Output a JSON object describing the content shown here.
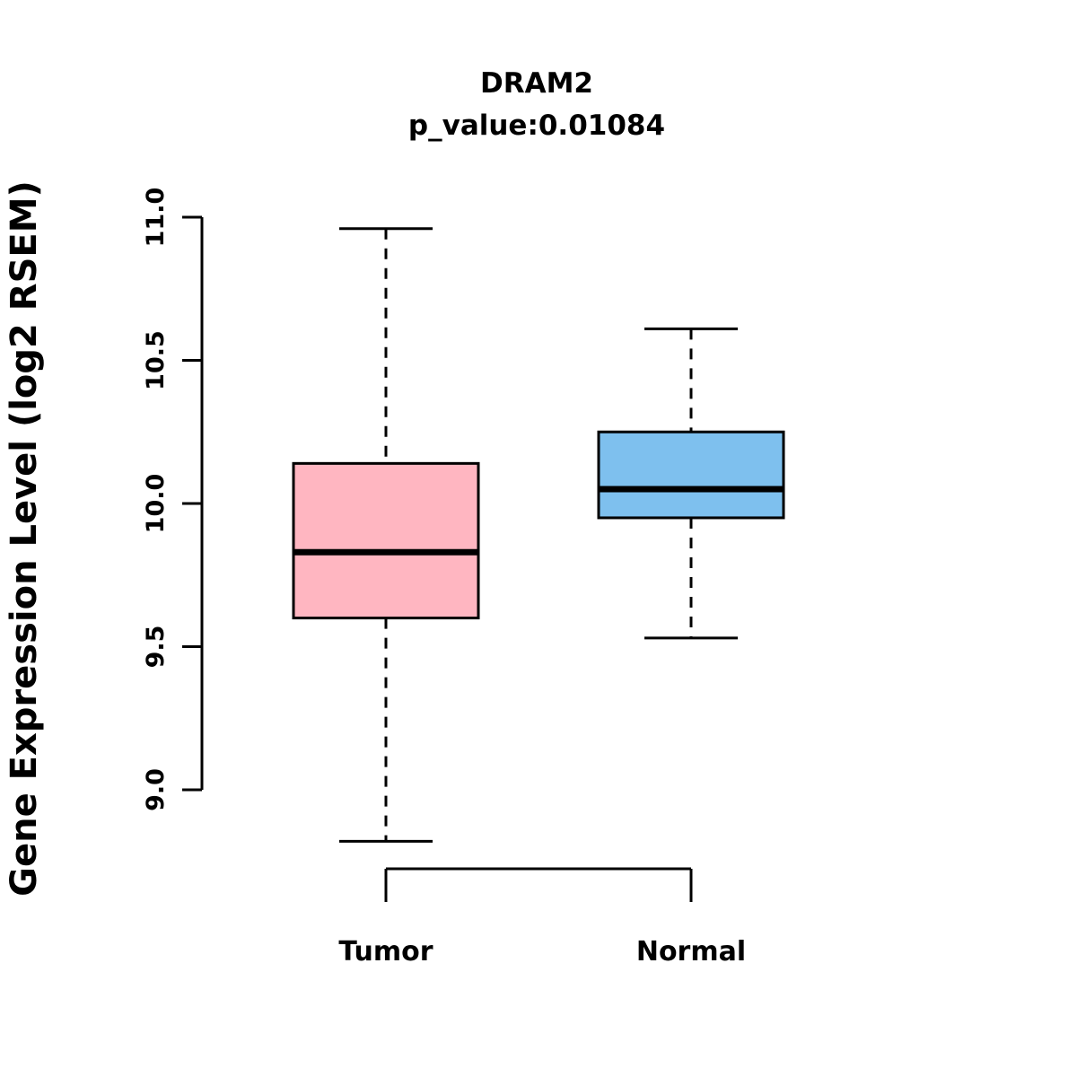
{
  "chart_data": {
    "type": "boxplot",
    "title": "DRAM2",
    "subtitle": "p_value:0.01084",
    "ylabel": "Gene Expression Level (log2 RSEM)",
    "xlabel": "",
    "y_ticks": [
      9.0,
      9.5,
      10.0,
      10.5,
      11.0
    ],
    "ylim": [
      8.7,
      11.05
    ],
    "grid": false,
    "legend": "none",
    "groups": [
      {
        "name": "Tumor",
        "color": "#FFB6C1",
        "whisker_low": 8.82,
        "q1": 9.6,
        "median": 9.83,
        "q3": 10.14,
        "whisker_high": 10.96
      },
      {
        "name": "Normal",
        "color": "#7EC0EE",
        "whisker_low": 9.53,
        "q1": 9.95,
        "median": 10.05,
        "q3": 10.25,
        "whisker_high": 10.61
      }
    ],
    "colors": {
      "box_border": "#000000",
      "background": "#ffffff"
    }
  }
}
